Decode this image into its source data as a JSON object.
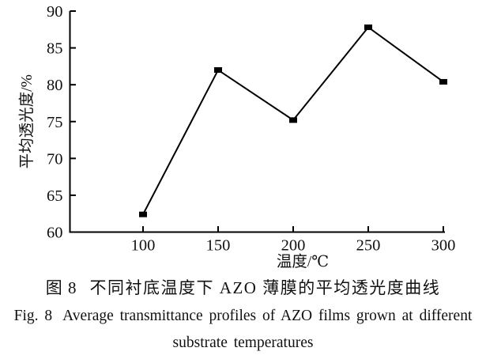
{
  "chart_data": {
    "type": "line",
    "title": "",
    "xlabel": "温度/℃",
    "ylabel": "平均透光度/%",
    "x": [
      100,
      150,
      200,
      250,
      300
    ],
    "series": [
      {
        "name": "AZO film average transmittance",
        "values": [
          62.4,
          82.0,
          75.2,
          87.8,
          80.4
        ]
      }
    ],
    "x_ticks": [
      100,
      150,
      200,
      250,
      300
    ],
    "y_ticks": [
      60,
      65,
      70,
      75,
      80,
      85,
      90
    ],
    "ylim": [
      60,
      90
    ],
    "grid": false,
    "legend": "none",
    "line_color": "#000000",
    "marker": "filled-square",
    "marker_color": "#000000",
    "axis_color": "#000000"
  },
  "caption": {
    "label_cn": "图 8",
    "title_cn": "不同衬底温度下 AZO 薄膜的平均透光度曲线",
    "label_en": "Fig. 8",
    "title_en_line1": "Average transmittance profiles of AZO films grown at different",
    "title_en_line2": "substrate temperatures"
  }
}
